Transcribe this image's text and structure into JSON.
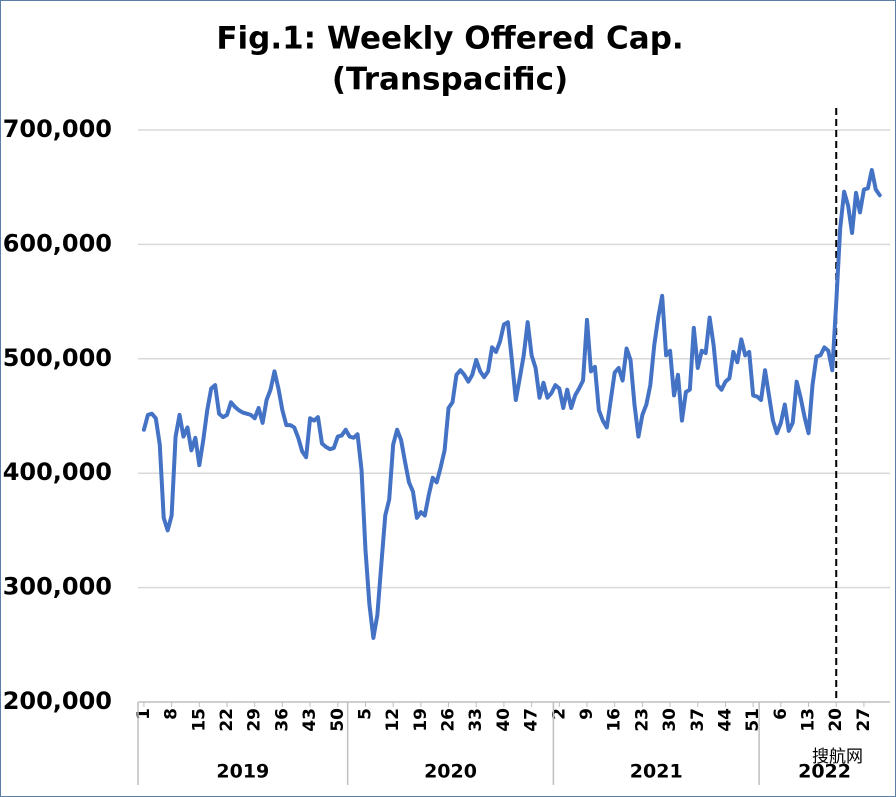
{
  "chart_data": {
    "type": "line",
    "title": "Fig.1: Weekly Offered Cap.",
    "subtitle": "(Transpacific)",
    "color": "#4472c4",
    "grid": true,
    "categories": [
      "1",
      null,
      null,
      null,
      null,
      null,
      null,
      "8",
      null,
      null,
      null,
      null,
      null,
      null,
      "15",
      null,
      null,
      null,
      null,
      null,
      null,
      "22",
      null,
      null,
      null,
      null,
      null,
      null,
      "29",
      null,
      null,
      null,
      null,
      null,
      null,
      "36",
      null,
      null,
      null,
      null,
      null,
      null,
      "43",
      null,
      null,
      null,
      null,
      null,
      null,
      "50",
      null,
      null,
      null,
      null,
      null,
      null,
      "5",
      null,
      null,
      null,
      null,
      null,
      null,
      "12",
      null,
      null,
      null,
      null,
      null,
      null,
      "19",
      null,
      null,
      null,
      null,
      null,
      null,
      "26",
      null,
      null,
      null,
      null,
      null,
      null,
      "33",
      null,
      null,
      null,
      null,
      null,
      null,
      "40",
      null,
      null,
      null,
      null,
      null,
      null,
      "47",
      null,
      null,
      null,
      null,
      null,
      null,
      "2",
      null,
      null,
      null,
      null,
      null,
      null,
      "9",
      null,
      null,
      null,
      null,
      null,
      null,
      "16",
      null,
      null,
      null,
      null,
      null,
      null,
      "23",
      null,
      null,
      null,
      null,
      null,
      null,
      "30",
      null,
      null,
      null,
      null,
      null,
      null,
      "37",
      null,
      null,
      null,
      null,
      null,
      null,
      "44",
      null,
      null,
      null,
      null,
      null,
      null,
      "51",
      null,
      null,
      null,
      null,
      null,
      null,
      "6",
      null,
      null,
      null,
      null,
      null,
      null,
      "13",
      null,
      null,
      null,
      null,
      null,
      null,
      "20",
      null,
      null,
      null,
      null,
      null,
      null,
      "27",
      null,
      null,
      null,
      null
    ],
    "years": [
      "2019",
      "2020",
      "2021",
      "2022"
    ],
    "values": [
      438000,
      451000,
      452000,
      448000,
      425000,
      361000,
      350000,
      363000,
      432000,
      451000,
      432000,
      440000,
      420000,
      431000,
      407000,
      429000,
      455000,
      474000,
      477000,
      452000,
      449000,
      451000,
      462000,
      458000,
      455000,
      453000,
      452000,
      451000,
      448000,
      457000,
      444000,
      464000,
      473000,
      489000,
      474000,
      455000,
      442000,
      442000,
      440000,
      431000,
      419000,
      414000,
      448000,
      446000,
      449000,
      426000,
      423000,
      421000,
      422000,
      432000,
      433000,
      438000,
      432000,
      431000,
      434000,
      403000,
      333000,
      285000,
      256000,
      276000,
      320000,
      363000,
      377000,
      425000,
      438000,
      429000,
      410000,
      392000,
      384000,
      361000,
      366000,
      363000,
      381000,
      396000,
      392000,
      405000,
      420000,
      457000,
      462000,
      486000,
      490000,
      486000,
      480000,
      486000,
      499000,
      489000,
      484000,
      489000,
      510000,
      506000,
      515000,
      530000,
      532000,
      499000,
      464000,
      483000,
      503000,
      532000,
      503000,
      492000,
      466000,
      479000,
      466000,
      470000,
      477000,
      474000,
      457000,
      473000,
      457000,
      468000,
      474000,
      481000,
      534000,
      489000,
      493000,
      455000,
      446000,
      440000,
      464000,
      488000,
      492000,
      481000,
      509000,
      499000,
      460000,
      432000,
      451000,
      460000,
      477000,
      512000,
      536000,
      555000,
      503000,
      507000,
      468000,
      486000,
      446000,
      471000,
      473000,
      527000,
      492000,
      507000,
      505000,
      536000,
      512000,
      477000,
      473000,
      480000,
      483000,
      506000,
      497000,
      517000,
      503000,
      506000,
      468000,
      467000,
      464000,
      490000,
      468000,
      446000,
      435000,
      444000,
      460000,
      437000,
      444000,
      480000,
      466000,
      449000,
      435000,
      477000,
      502000,
      503000,
      510000,
      507000,
      490000,
      549000,
      614000,
      646000,
      634000,
      610000,
      645000,
      628000,
      648000,
      649000,
      665000,
      648000,
      643000
    ],
    "ylim": [
      200000,
      700000
    ],
    "yticks": [
      {
        "value": 200000,
        "label": "200,000"
      },
      {
        "value": 300000,
        "label": "300,000"
      },
      {
        "value": 400000,
        "label": "400,000"
      },
      {
        "value": 500000,
        "label": "500,000"
      },
      {
        "value": 600000,
        "label": "600,000"
      },
      {
        "value": 700000,
        "label": "700,000"
      }
    ],
    "watermark": "搜航网"
  }
}
